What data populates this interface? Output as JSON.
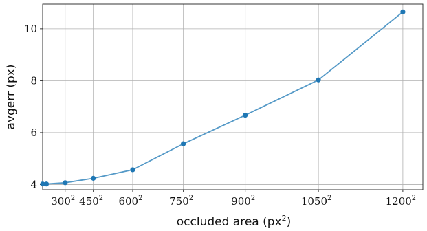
{
  "chart_data": {
    "type": "line",
    "xlabel": "occluded area (px",
    "xlabel_sup": "2",
    "xlabel_suffix": ")",
    "ylabel": "avgerr (px)",
    "grid": true,
    "line_color": "#5499c7",
    "marker_color": "#1f77b4",
    "xlim": [
      0,
      1520000
    ],
    "ylim": [
      3.8,
      10.95
    ],
    "x_ticks": [
      {
        "value": 90000,
        "base": "300",
        "exp": "2"
      },
      {
        "value": 202500,
        "base": "450",
        "exp": "2"
      },
      {
        "value": 360000,
        "base": "600",
        "exp": "2"
      },
      {
        "value": 562500,
        "base": "750",
        "exp": "2"
      },
      {
        "value": 810000,
        "base": "900",
        "exp": "2"
      },
      {
        "value": 1102500,
        "base": "1050",
        "exp": "2"
      },
      {
        "value": 1440000,
        "base": "1200",
        "exp": "2"
      }
    ],
    "y_ticks": [
      {
        "value": 4,
        "label": "4"
      },
      {
        "value": 6,
        "label": "6"
      },
      {
        "value": 8,
        "label": "8"
      },
      {
        "value": 10,
        "label": "10"
      }
    ],
    "series": [
      {
        "x": [
          0,
          15000,
          90000,
          202500,
          360000,
          562500,
          810000,
          1102500,
          1440000
        ],
        "y": [
          4.02,
          4.02,
          4.07,
          4.24,
          4.57,
          5.57,
          6.67,
          8.03,
          10.65
        ]
      }
    ]
  }
}
